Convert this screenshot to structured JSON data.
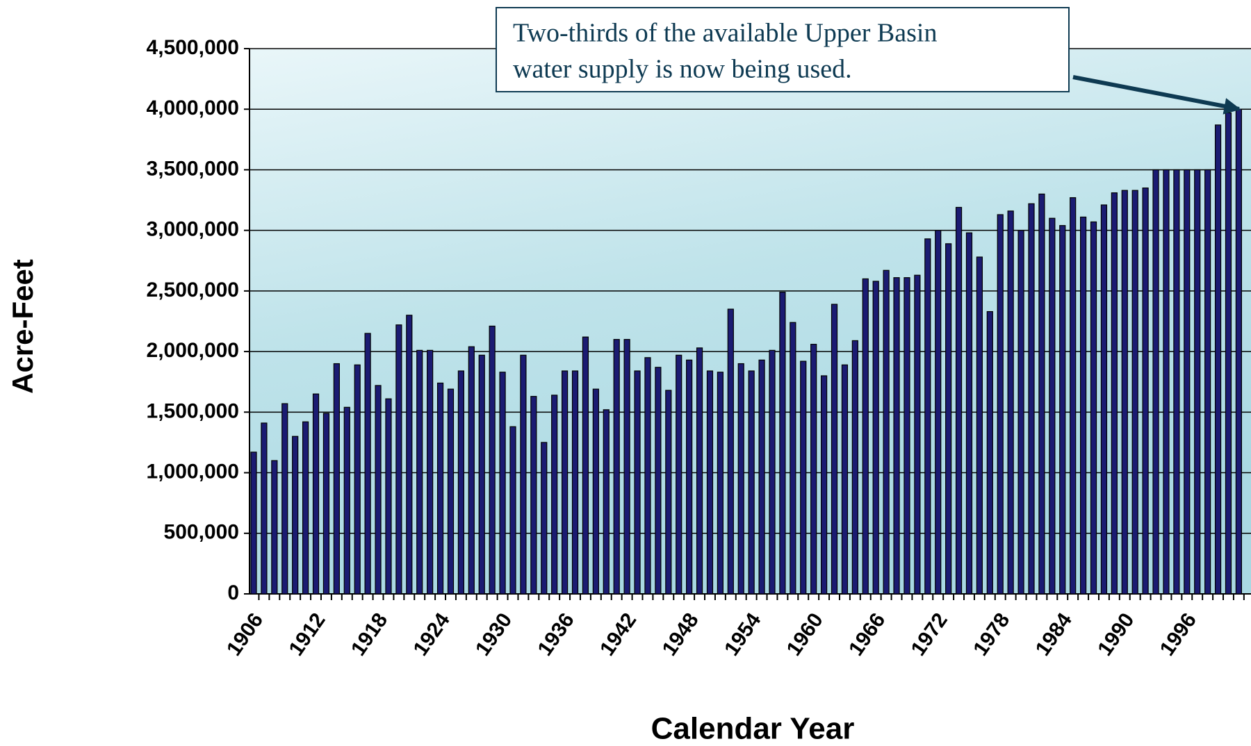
{
  "chart_data": {
    "type": "bar",
    "y_label": "Acre-Feet",
    "x_label": "Calendar Year",
    "annotation": [
      "Two-thirds of the available Upper Basin",
      "water supply is now being used."
    ],
    "categories": [
      "1906",
      null,
      null,
      null,
      null,
      null,
      "1912",
      null,
      null,
      null,
      null,
      null,
      "1918",
      null,
      null,
      null,
      null,
      null,
      "1924",
      null,
      null,
      null,
      null,
      null,
      "1930",
      null,
      null,
      null,
      null,
      null,
      "1936",
      null,
      null,
      null,
      null,
      null,
      "1942",
      null,
      null,
      null,
      null,
      null,
      "1948",
      null,
      null,
      null,
      null,
      null,
      "1954",
      null,
      null,
      null,
      null,
      null,
      "1960",
      null,
      null,
      null,
      null,
      null,
      "1966",
      null,
      null,
      null,
      null,
      null,
      "1972",
      null,
      null,
      null,
      null,
      null,
      "1978",
      null,
      null,
      null,
      null,
      null,
      "1984",
      null,
      null,
      null,
      null,
      null,
      "1990",
      null,
      null,
      null,
      null,
      null,
      "1996",
      null,
      null,
      null,
      null,
      null
    ],
    "values": [
      1170000,
      1410000,
      1100000,
      1570000,
      1300000,
      1420000,
      1650000,
      1490000,
      1900000,
      1540000,
      1890000,
      2150000,
      1720000,
      1610000,
      2220000,
      2300000,
      2010000,
      2010000,
      1740000,
      1690000,
      1840000,
      2040000,
      1970000,
      2210000,
      1830000,
      1380000,
      1970000,
      1630000,
      1250000,
      1640000,
      1840000,
      1840000,
      2120000,
      1690000,
      1520000,
      2100000,
      2100000,
      1840000,
      1950000,
      1870000,
      1680000,
      1970000,
      1930000,
      2030000,
      1840000,
      1830000,
      2350000,
      1900000,
      1840000,
      1930000,
      2010000,
      2490000,
      2240000,
      1920000,
      2060000,
      1800000,
      2390000,
      1890000,
      2090000,
      2600000,
      2580000,
      2670000,
      2610000,
      2610000,
      2630000,
      2930000,
      3000000,
      2890000,
      3190000,
      2980000,
      2780000,
      2330000,
      3130000,
      3160000,
      3000000,
      3220000,
      3300000,
      3100000,
      3040000,
      3270000,
      3110000,
      3070000,
      3210000,
      3310000,
      3330000,
      3330000,
      3350000,
      3500000,
      3500000,
      3500000,
      3500000,
      3500000,
      3500000,
      3870000,
      3970000,
      4000000
    ],
    "color": "#1b1b72",
    "ylim": [
      0,
      4500000
    ],
    "yticks": [
      0,
      {
        "value": 500000,
        "label": "500,000"
      },
      {
        "value": 1000000,
        "label": "1,000,000"
      },
      {
        "value": 1500000,
        "label": "1,500,000"
      },
      {
        "value": 2000000,
        "label": "2,000,000"
      },
      {
        "value": 2500000,
        "label": "2,500,000"
      },
      {
        "value": 3000000,
        "label": "3,000,000"
      },
      {
        "value": 3500000,
        "label": "3,500,000"
      },
      {
        "value": 4000000,
        "label": "4,000,000"
      },
      {
        "value": 4500000,
        "label": "4,500,000"
      }
    ],
    "grid": true
  }
}
